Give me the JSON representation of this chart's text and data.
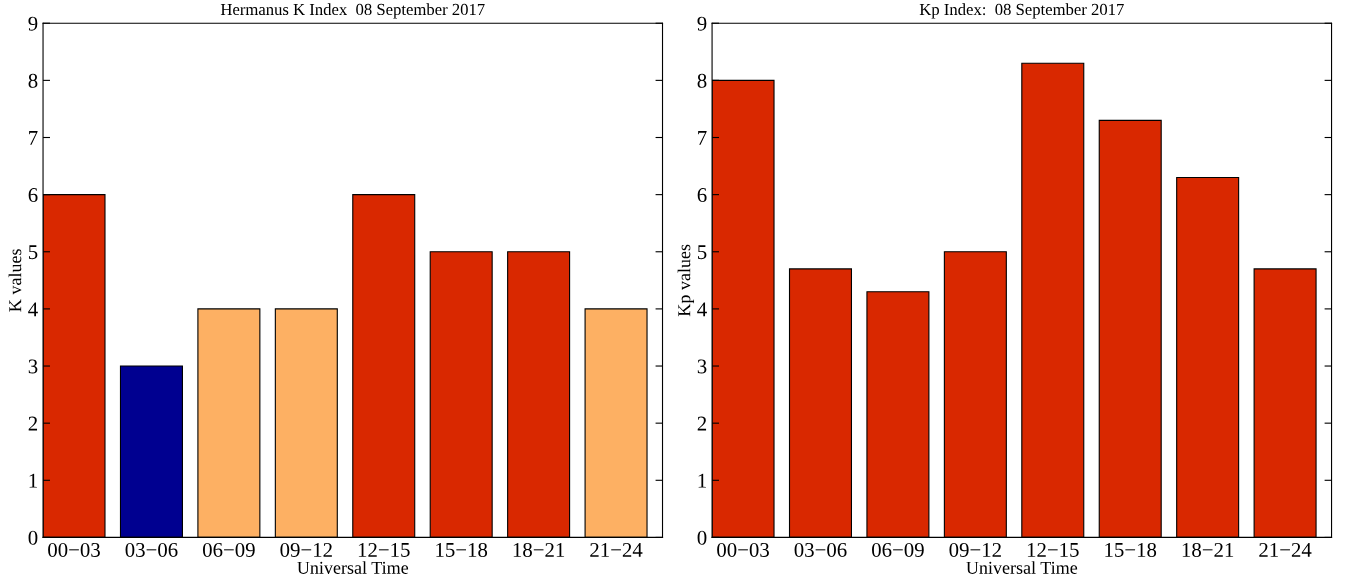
{
  "chart_data": [
    {
      "type": "bar",
      "title": "Hermanus K Index  08 September 2017",
      "xlabel": "Universal Time",
      "ylabel": "K values",
      "categories": [
        "00−03",
        "03−06",
        "06−09",
        "09−12",
        "12−15",
        "15−18",
        "18−21",
        "21−24"
      ],
      "values": [
        6,
        3,
        4,
        4,
        6,
        5,
        5,
        4
      ],
      "colors": [
        "#d92800",
        "#000090",
        "#fdb063",
        "#fdb063",
        "#d92800",
        "#d92800",
        "#d92800",
        "#fdb063"
      ],
      "ylim": [
        0,
        9
      ],
      "yticks": [
        0,
        1,
        2,
        3,
        4,
        5,
        6,
        7,
        8,
        9
      ],
      "grid": false
    },
    {
      "type": "bar",
      "title": "Kp Index:  08 September 2017",
      "xlabel": "Universal Time",
      "ylabel": "Kp values",
      "categories": [
        "00−03",
        "03−06",
        "06−09",
        "09−12",
        "12−15",
        "15−18",
        "18−21",
        "21−24"
      ],
      "values": [
        8,
        4.7,
        4.3,
        5,
        8.3,
        7.3,
        6.3,
        4.7
      ],
      "colors": [
        "#d92800",
        "#d92800",
        "#d92800",
        "#d92800",
        "#d92800",
        "#d92800",
        "#d92800",
        "#d92800"
      ],
      "ylim": [
        0,
        9
      ],
      "yticks": [
        0,
        1,
        2,
        3,
        4,
        5,
        6,
        7,
        8,
        9
      ],
      "grid": false
    }
  ]
}
